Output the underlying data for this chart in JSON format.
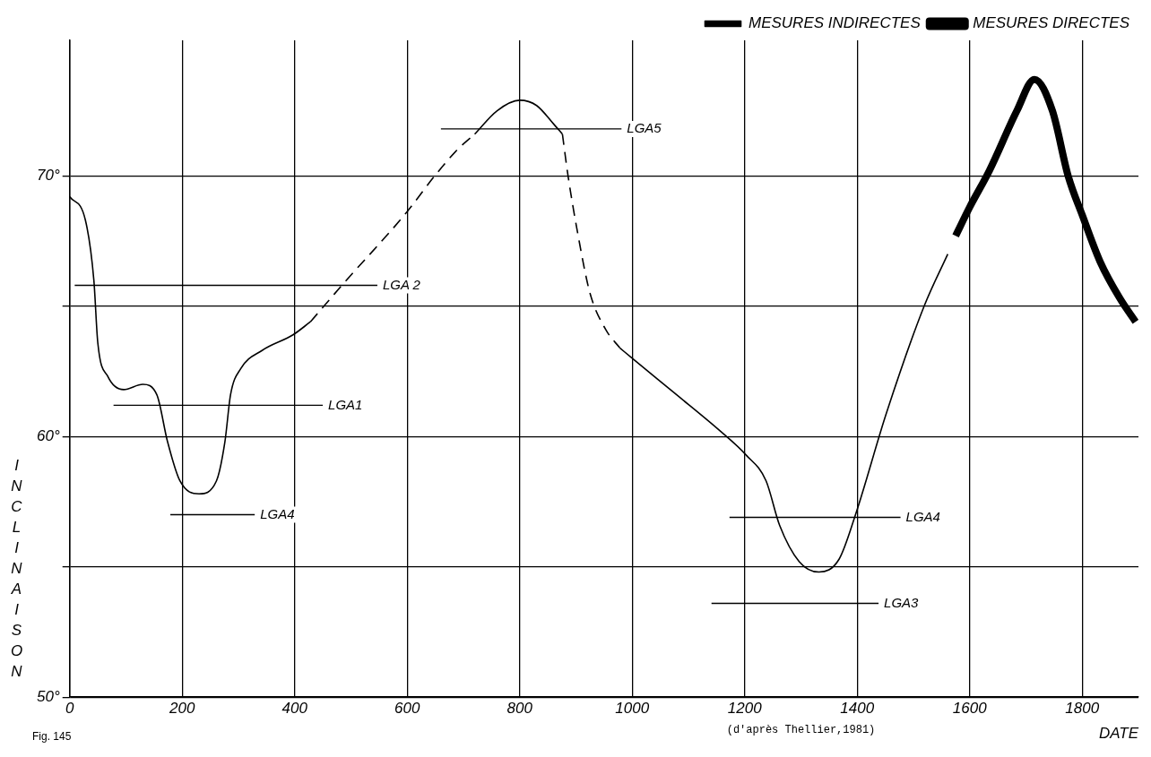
{
  "chart_data": {
    "type": "line",
    "xlabel": "DATE",
    "ylabel": "INCLINAISON",
    "annotations": [
      "Fig. 145",
      "(d'après Thellier,1981)"
    ],
    "xlim": [
      0,
      1900
    ],
    "ylim": [
      50,
      75.2
    ],
    "xticks": [
      0,
      200,
      400,
      600,
      800,
      1000,
      1200,
      1400,
      1600,
      1800
    ],
    "yticks": [
      {
        "value": 50,
        "label": "50°"
      },
      {
        "value": 55,
        "label": null
      },
      {
        "value": 60,
        "label": "60°"
      },
      {
        "value": 65,
        "label": null
      },
      {
        "value": 70,
        "label": "70°"
      }
    ],
    "grid": true,
    "legend": "top right",
    "series": [
      {
        "name": "MESURES INDIRECTES",
        "color": "#000000",
        "line_style": "solid",
        "x": [
          0,
          28,
          43,
          50,
          68,
          96,
          130,
          155,
          174,
          196,
          230,
          261,
          276,
          286,
          304,
          342,
          397,
          428
        ],
        "values": [
          69.2,
          68.3,
          66.0,
          63.6,
          62.3,
          61.8,
          62.0,
          61.6,
          59.8,
          58.3,
          57.8,
          58.3,
          59.8,
          61.6,
          62.6,
          63.3,
          63.9,
          64.4
        ]
      },
      {
        "color": "#000000",
        "line_style": "dashed",
        "x": [
          428,
          484,
          599,
          649,
          689,
          720
        ],
        "values": [
          64.4,
          65.8,
          68.6,
          70.0,
          71.0,
          71.6
        ]
      },
      {
        "color": "#000000",
        "line_style": "solid",
        "x": [
          720,
          760,
          800,
          830,
          860,
          876
        ],
        "values": [
          71.6,
          72.5,
          72.9,
          72.7,
          72.0,
          71.6
        ]
      },
      {
        "color": "#000000",
        "line_style": "dashed",
        "x": [
          876,
          886,
          904,
          925,
          953,
          978
        ],
        "values": [
          71.6,
          70.0,
          67.7,
          65.5,
          64.1,
          63.4
        ]
      },
      {
        "color": "#000000",
        "line_style": "solid",
        "x": [
          978,
          1000,
          1079,
          1157,
          1202,
          1238,
          1262,
          1297,
          1332,
          1368,
          1397,
          1452,
          1519,
          1561
        ],
        "values": [
          63.4,
          63.0,
          61.6,
          60.2,
          59.3,
          58.3,
          56.6,
          55.2,
          54.8,
          55.3,
          57.0,
          60.9,
          65.0,
          67.0
        ]
      },
      {
        "name": "LGA 2",
        "type": "step",
        "color": "#000000",
        "x": [
          9,
          547
        ],
        "values": [
          65.8,
          65.8
        ]
      },
      {
        "name": "LGA1",
        "type": "step",
        "color": "#000000",
        "x": [
          78,
          450
        ],
        "values": [
          61.2,
          61.2
        ]
      },
      {
        "name": "LGA4",
        "type": "step",
        "color": "#000000",
        "x": [
          179,
          329
        ],
        "values": [
          57.0,
          57.0
        ]
      },
      {
        "name": "LGA5",
        "type": "step",
        "color": "#000000",
        "x": [
          660,
          981
        ],
        "values": [
          71.8,
          71.8
        ]
      },
      {
        "name": "LGA4",
        "type": "step",
        "color": "#000000",
        "x": [
          1173,
          1477
        ],
        "values": [
          56.9,
          56.9
        ]
      },
      {
        "name": "LGA3",
        "type": "step",
        "color": "#000000",
        "x": [
          1141,
          1438
        ],
        "values": [
          53.6,
          53.6
        ]
      },
      {
        "name": "MESURES DIRECTES",
        "color": "#000000",
        "line_style": "solid",
        "x": [
          1575,
          1600,
          1635,
          1684,
          1715,
          1747,
          1775,
          1800,
          1832,
          1867,
          1895
        ],
        "values": [
          67.7,
          68.8,
          70.2,
          72.5,
          73.7,
          72.5,
          70.0,
          68.5,
          66.7,
          65.3,
          64.4
        ]
      }
    ]
  }
}
